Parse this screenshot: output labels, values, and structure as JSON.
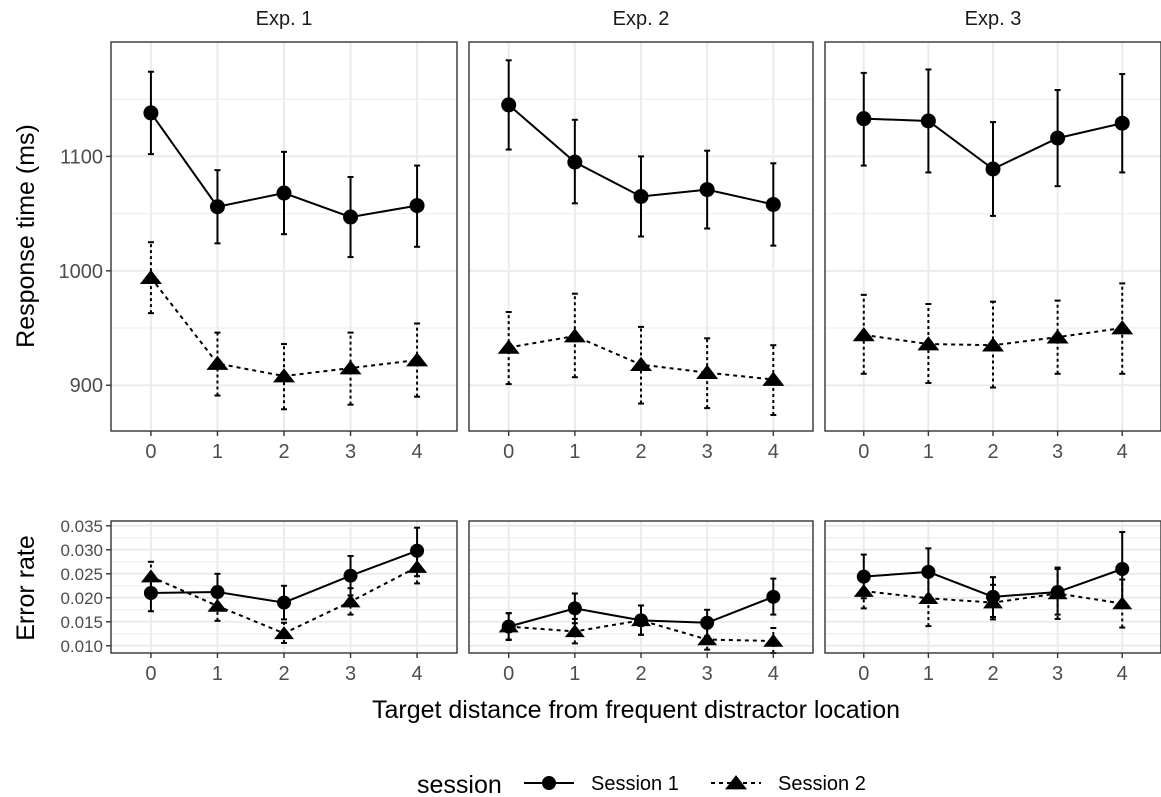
{
  "chart_data": {
    "type": "line",
    "panels": [
      "Exp. 1",
      "Exp. 2",
      "Exp. 3"
    ],
    "x": [
      "0",
      "1",
      "2",
      "3",
      "4"
    ],
    "xlabel": "Target distance from frequent distractor location",
    "rows": [
      {
        "metric": "response_time",
        "ylabel": "Response time (ms)",
        "ylim": [
          860,
          1200
        ],
        "yticks": [
          "900",
          "1000",
          "1100"
        ],
        "series": [
          {
            "name": "Session 1",
            "marker": "circle",
            "linestyle": "solid",
            "data": [
              {
                "panel": "Exp. 1",
                "y": [
                  1138,
                  1056,
                  1068,
                  1047,
                  1057
                ],
                "lower": [
                  1102,
                  1024,
                  1032,
                  1012,
                  1021
                ],
                "upper": [
                  1174,
                  1088,
                  1104,
                  1082,
                  1092
                ]
              },
              {
                "panel": "Exp. 2",
                "y": [
                  1145,
                  1095,
                  1065,
                  1071,
                  1058
                ],
                "lower": [
                  1106,
                  1059,
                  1030,
                  1037,
                  1022
                ],
                "upper": [
                  1184,
                  1132,
                  1100,
                  1105,
                  1094
                ]
              },
              {
                "panel": "Exp. 3",
                "y": [
                  1133,
                  1131,
                  1089,
                  1116,
                  1129
                ],
                "lower": [
                  1092,
                  1086,
                  1048,
                  1074,
                  1086
                ],
                "upper": [
                  1173,
                  1176,
                  1130,
                  1158,
                  1172
                ]
              }
            ]
          },
          {
            "name": "Session 2",
            "marker": "triangle",
            "linestyle": "dashed",
            "data": [
              {
                "panel": "Exp. 1",
                "y": [
                  994,
                  919,
                  908,
                  915,
                  922
                ],
                "lower": [
                  963,
                  891,
                  879,
                  883,
                  890
                ],
                "upper": [
                  1025,
                  946,
                  936,
                  946,
                  954
                ]
              },
              {
                "panel": "Exp. 2",
                "y": [
                  933,
                  943,
                  918,
                  911,
                  905
                ],
                "lower": [
                  901,
                  907,
                  884,
                  880,
                  874
                ],
                "upper": [
                  964,
                  980,
                  951,
                  941,
                  935
                ]
              },
              {
                "panel": "Exp. 3",
                "y": [
                  944,
                  936,
                  935,
                  942,
                  950
                ],
                "lower": [
                  910,
                  902,
                  898,
                  910,
                  910
                ],
                "upper": [
                  979,
                  971,
                  973,
                  974,
                  989
                ]
              }
            ]
          }
        ]
      },
      {
        "metric": "error_rate",
        "ylabel": "Error rate",
        "ylim": [
          0.0085,
          0.036
        ],
        "yticks": [
          "0.010",
          "0.015",
          "0.020",
          "0.025",
          "0.030",
          "0.035"
        ],
        "series": [
          {
            "name": "Session 1",
            "marker": "circle",
            "linestyle": "solid",
            "data": [
              {
                "panel": "Exp. 1",
                "y": [
                  0.021,
                  0.0212,
                  0.019,
                  0.0246,
                  0.0298
                ],
                "lower": [
                  0.0172,
                  0.0175,
                  0.0155,
                  0.0205,
                  0.0245
                ],
                "upper": [
                  0.0248,
                  0.025,
                  0.0225,
                  0.0287,
                  0.0346
                ]
              },
              {
                "panel": "Exp. 2",
                "y": [
                  0.014,
                  0.0178,
                  0.0153,
                  0.0148,
                  0.0202
                ],
                "lower": [
                  0.0113,
                  0.0147,
                  0.0123,
                  0.012,
                  0.0165
                ],
                "upper": [
                  0.0168,
                  0.0209,
                  0.0184,
                  0.0175,
                  0.024
                ]
              },
              {
                "panel": "Exp. 3",
                "y": [
                  0.0244,
                  0.0254,
                  0.0202,
                  0.0212,
                  0.026
                ],
                "lower": [
                  0.0199,
                  0.0206,
                  0.016,
                  0.0165,
                  0.0187
                ],
                "upper": [
                  0.029,
                  0.0303,
                  0.0243,
                  0.026,
                  0.0337
                ]
              }
            ]
          },
          {
            "name": "Session 2",
            "marker": "triangle",
            "linestyle": "dashed",
            "data": [
              {
                "panel": "Exp. 1",
                "y": [
                  0.0244,
                  0.0183,
                  0.0126,
                  0.0192,
                  0.0264
                ],
                "lower": [
                  0.0213,
                  0.0152,
                  0.0106,
                  0.0165,
                  0.023
                ],
                "upper": [
                  0.0275,
                  0.0215,
                  0.0148,
                  0.022,
                  0.0298
                ]
              },
              {
                "panel": "Exp. 2",
                "y": [
                  0.014,
                  0.013,
                  0.0153,
                  0.0113,
                  0.011
                ],
                "lower": [
                  0.0112,
                  0.0105,
                  0.0123,
                  0.0092,
                  0.0085
                ],
                "upper": [
                  0.0168,
                  0.0156,
                  0.0184,
                  0.0136,
                  0.0137
                ]
              },
              {
                "panel": "Exp. 3",
                "y": [
                  0.0214,
                  0.0199,
                  0.019,
                  0.0209,
                  0.0188
                ],
                "lower": [
                  0.0178,
                  0.0141,
                  0.0155,
                  0.0156,
                  0.0138
                ],
                "upper": [
                  0.025,
                  0.0257,
                  0.0227,
                  0.0263,
                  0.0238
                ]
              }
            ]
          }
        ]
      }
    ],
    "legend": {
      "title": "session",
      "position": "bottom",
      "entries": [
        "Session 1",
        "Session 2"
      ]
    },
    "grid": true
  }
}
